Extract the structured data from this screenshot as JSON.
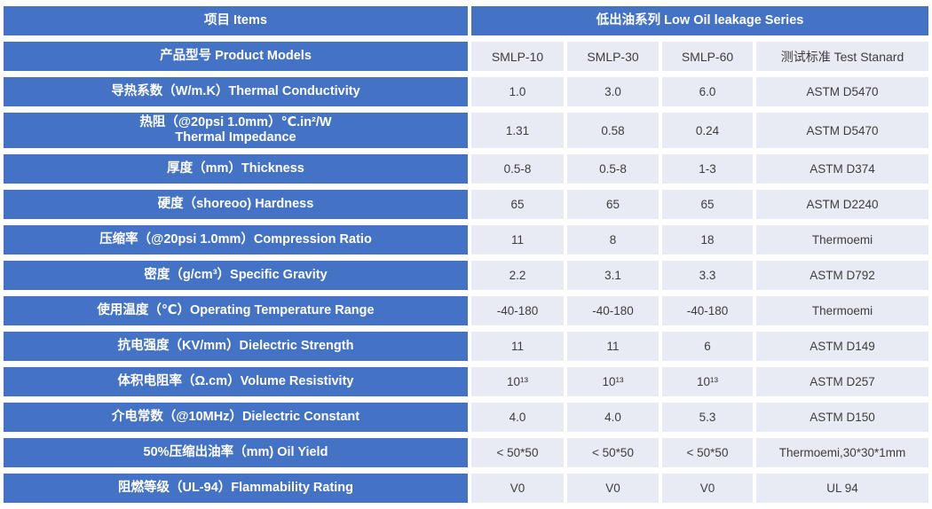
{
  "table": {
    "colors": {
      "header_blue": "#4472C4",
      "cell_light": "#E9EBF4",
      "divider_white": "#FFFFFF",
      "text_on_blue": "#FFFFFF",
      "text_on_light": "#3D3D3D"
    },
    "header_row": {
      "items": "项目  Items",
      "series": "低出油系列 Low Oil leakage Series"
    },
    "model_row": {
      "label": "产品型号 Product Models",
      "columns": [
        "SMLP-10",
        "SMLP-30",
        "SMLP-60",
        "测试标准 Test Stanard"
      ]
    },
    "rows": [
      {
        "label": "导热系数（W/m.K）Thermal Conductivity",
        "values": [
          "1.0",
          "3.0",
          "6.0",
          "ASTM D5470"
        ]
      },
      {
        "label": "热阻（@20psi 1.0mm）℃.in²/W\nThermal Impedance",
        "values": [
          "1.31",
          "0.58",
          "0.24",
          "ASTM D5470"
        ]
      },
      {
        "label": "厚度（mm）Thickness",
        "values": [
          "0.5-8",
          "0.5-8",
          "1-3",
          "ASTM D374"
        ]
      },
      {
        "label": "硬度（shoreoo) Hardness",
        "values": [
          "65",
          "65",
          "65",
          "ASTM D2240"
        ]
      },
      {
        "label": "压缩率（@20psi 1.0mm）Compression Ratio",
        "values": [
          "11",
          "8",
          "18",
          "Thermoemi"
        ]
      },
      {
        "label": "密度（g/cm³）Specific Gravity",
        "values": [
          "2.2",
          "3.1",
          "3.3",
          "ASTM D792"
        ]
      },
      {
        "label": "使用温度（℃）Operating Temperature Range",
        "values": [
          "-40-180",
          "-40-180",
          "-40-180",
          "Thermoemi"
        ]
      },
      {
        "label": "抗电强度（KV/mm）Dielectric Strength",
        "values": [
          "11",
          "11",
          "6",
          "ASTM D149"
        ]
      },
      {
        "label": "体积电阻率（Ω.cm）Volume Resistivity",
        "values": [
          "10¹³",
          "10¹³",
          "10¹³",
          "ASTM D257"
        ]
      },
      {
        "label": "介电常数（@10MHz）Dielectric Constant",
        "values": [
          "4.0",
          "4.0",
          "5.3",
          "ASTM D150"
        ]
      },
      {
        "label": "50%压缩出油率（mm) Oil Yield",
        "values": [
          "< 50*50",
          "< 50*50",
          "< 50*50",
          "Thermoemi,30*30*1mm"
        ]
      },
      {
        "label": "阻燃等级（UL-94）Flammability Rating",
        "values": [
          "V0",
          "V0",
          "V0",
          "UL 94"
        ]
      }
    ]
  }
}
